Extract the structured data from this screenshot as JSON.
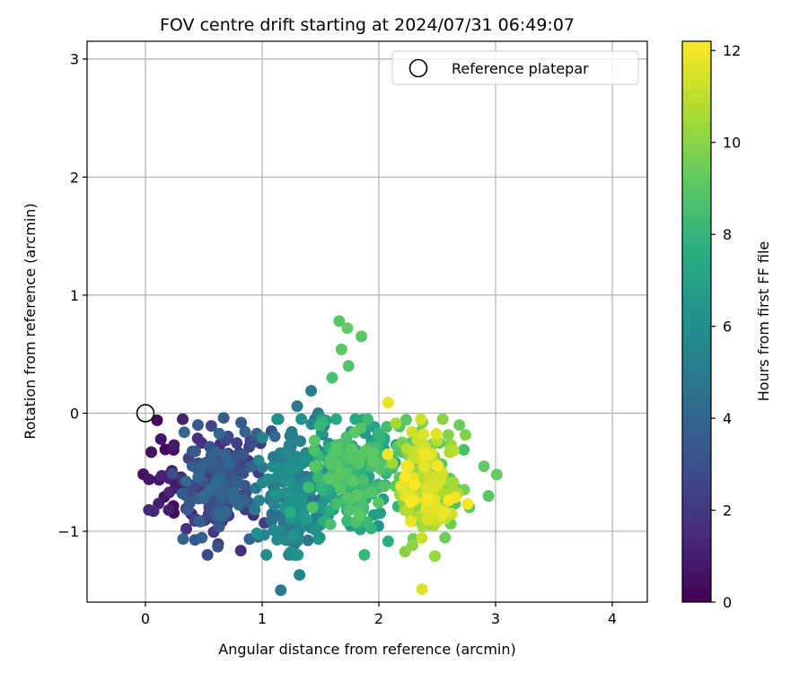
{
  "chart_data": {
    "type": "scatter",
    "title": "FOV centre drift starting at 2024/07/31 06:49:07",
    "xlabel": "Angular distance from reference (arcmin)",
    "ylabel": "Rotation from reference (arcmin)",
    "xlim": [
      -0.5,
      4.3
    ],
    "ylim": [
      -1.6,
      3.15
    ],
    "xticks": [
      0,
      1,
      2,
      3,
      4
    ],
    "xtick_labels": [
      "0",
      "1",
      "2",
      "3",
      "4"
    ],
    "yticks": [
      -1,
      0,
      1,
      2,
      3
    ],
    "ytick_labels": [
      "−1",
      "0",
      "1",
      "2",
      "3"
    ],
    "grid": true,
    "colormap": "viridis",
    "colorbar": {
      "label": "Hours from first FF file",
      "range": [
        0,
        12.2
      ],
      "ticks": [
        0,
        2,
        4,
        6,
        8,
        10,
        12
      ],
      "tick_labels": [
        "0",
        "2",
        "4",
        "6",
        "8",
        "10",
        "12"
      ]
    },
    "legend": {
      "position": "top-right",
      "entries": [
        {
          "label": "Reference platepar",
          "marker": "open-circle",
          "x": 0,
          "y": 0
        }
      ]
    },
    "clusters": [
      {
        "hours_range": [
          0,
          1.5
        ],
        "x_center": 0.2,
        "y_center": -0.6,
        "x_spread": 0.12,
        "y_spread": 0.2,
        "count": 25
      },
      {
        "hours_range": [
          1.5,
          4.2
        ],
        "x_center": 0.63,
        "y_center": -0.6,
        "x_spread": 0.16,
        "y_spread": 0.22,
        "count": 180
      },
      {
        "hours_range": [
          4.2,
          6.3
        ],
        "x_center": 1.28,
        "y_center": -0.65,
        "x_spread": 0.13,
        "y_spread": 0.28,
        "count": 200
      },
      {
        "hours_range": [
          6.3,
          9.2
        ],
        "x_center": 1.78,
        "y_center": -0.55,
        "x_spread": 0.18,
        "y_spread": 0.25,
        "count": 220
      },
      {
        "hours_range": [
          8.5,
          12.2
        ],
        "x_center": 2.42,
        "y_center": -0.6,
        "x_spread": 0.13,
        "y_spread": 0.24,
        "count": 230
      }
    ],
    "points": [
      {
        "x": 0.1,
        "y": -0.06,
        "h": 0.3
      },
      {
        "x": 0.05,
        "y": -0.33,
        "h": 0.5
      },
      {
        "x": 0.03,
        "y": -0.56,
        "h": 0.7
      },
      {
        "x": 0.2,
        "y": -0.82,
        "h": 1.0
      },
      {
        "x": 0.35,
        "y": -0.98,
        "h": 1.6
      },
      {
        "x": 0.45,
        "y": -0.1,
        "h": 3.5
      },
      {
        "x": 0.67,
        "y": -0.04,
        "h": 3.6
      },
      {
        "x": 0.82,
        "y": -0.08,
        "h": 3.6
      },
      {
        "x": 0.62,
        "y": -1.13,
        "h": 3.0
      },
      {
        "x": 0.9,
        "y": -0.23,
        "h": 1.8
      },
      {
        "x": 1.02,
        "y": -0.93,
        "h": 2.4
      },
      {
        "x": 1.3,
        "y": 0.06,
        "h": 4.8
      },
      {
        "x": 1.42,
        "y": 0.19,
        "h": 5.0
      },
      {
        "x": 1.48,
        "y": 0.0,
        "h": 5.2
      },
      {
        "x": 1.16,
        "y": -1.5,
        "h": 5.0
      },
      {
        "x": 1.32,
        "y": -1.37,
        "h": 5.4
      },
      {
        "x": 1.66,
        "y": 0.78,
        "h": 9.0
      },
      {
        "x": 1.73,
        "y": 0.72,
        "h": 9.2
      },
      {
        "x": 1.85,
        "y": 0.65,
        "h": 9.0
      },
      {
        "x": 1.68,
        "y": 0.54,
        "h": 9.1
      },
      {
        "x": 1.6,
        "y": 0.3,
        "h": 8.6
      },
      {
        "x": 1.74,
        "y": 0.4,
        "h": 8.8
      },
      {
        "x": 2.08,
        "y": 0.09,
        "h": 11.8
      },
      {
        "x": 2.37,
        "y": -1.49,
        "h": 11.6
      },
      {
        "x": 2.48,
        "y": -1.21,
        "h": 10.2
      },
      {
        "x": 2.94,
        "y": -0.7,
        "h": 9.0
      },
      {
        "x": 3.01,
        "y": -0.52,
        "h": 9.2
      },
      {
        "x": 2.9,
        "y": -0.45,
        "h": 9.2
      },
      {
        "x": 2.69,
        "y": -0.1,
        "h": 9.4
      }
    ]
  }
}
